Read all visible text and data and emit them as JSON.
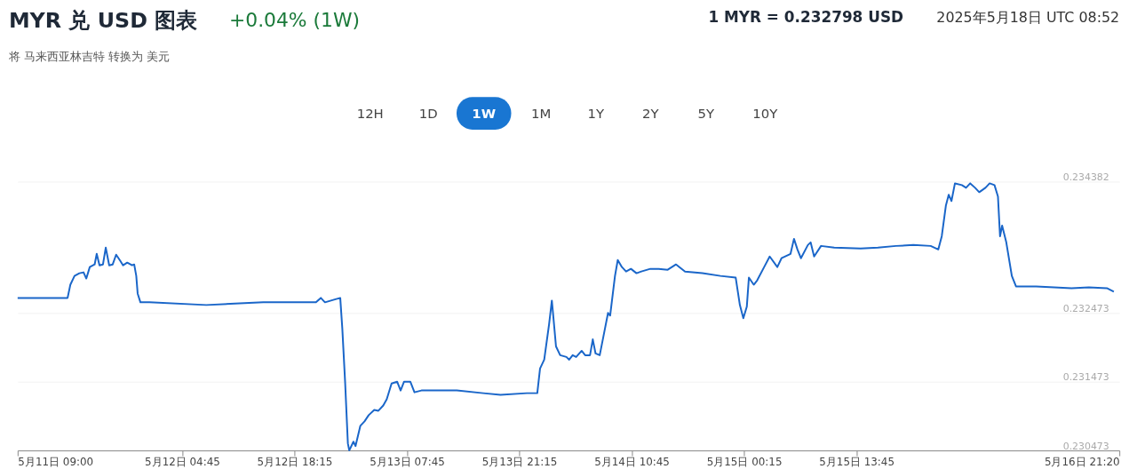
{
  "chart_data": {
    "type": "line",
    "title": "MYR 兑 USD 图表",
    "subtitle": "将 马来西亚林吉特 转换为 美元",
    "annotations": [
      "+0.04% (1W)",
      "1 MYR = 0.232798 USD",
      "2025年5月18日 UTC 08:52",
      "12H",
      "1D",
      "1W",
      "1M",
      "1Y",
      "2Y",
      "5Y",
      "10Y"
    ],
    "x": [
      "2025-05-11T09:00",
      "2025-05-11T15:00",
      "2025-05-11T15:20",
      "2025-05-11T15:50",
      "2025-05-11T16:25",
      "2025-05-11T16:55",
      "2025-05-11T17:15",
      "2025-05-11T17:40",
      "2025-05-11T18:15",
      "2025-05-11T18:30",
      "2025-05-11T18:50",
      "2025-05-11T19:15",
      "2025-05-11T19:35",
      "2025-05-11T20:00",
      "2025-05-11T20:25",
      "2025-05-11T20:50",
      "2025-05-11T21:20",
      "2025-05-11T21:40",
      "2025-05-11T22:10",
      "2025-05-11T22:45",
      "2025-05-11T23:00",
      "2025-05-11T23:15",
      "2025-05-11T23:25",
      "2025-05-11T23:45",
      "2025-05-12T00:50",
      "2025-05-12T07:40",
      "2025-05-12T14:30",
      "2025-05-12T20:50",
      "2025-05-12T21:25",
      "2025-05-12T21:55",
      "2025-05-12T23:00",
      "2025-05-12T23:45",
      "2025-05-13T00:00",
      "2025-05-13T00:20",
      "2025-05-13T00:40",
      "2025-05-13T00:50",
      "2025-05-13T01:20",
      "2025-05-13T01:35",
      "2025-05-13T02:10",
      "2025-05-13T02:40",
      "2025-05-13T03:10",
      "2025-05-13T03:50",
      "2025-05-13T04:20",
      "2025-05-13T04:55",
      "2025-05-13T05:20",
      "2025-05-13T05:55",
      "2025-05-13T06:35",
      "2025-05-13T07:00",
      "2025-05-13T07:25",
      "2025-05-13T08:10",
      "2025-05-13T08:40",
      "2025-05-13T09:30",
      "2025-05-13T11:40",
      "2025-05-13T13:45",
      "2025-05-13T16:55",
      "2025-05-13T19:00",
      "2025-05-13T22:10",
      "2025-05-13T23:25",
      "2025-05-13T23:45",
      "2025-05-14T00:15",
      "2025-05-14T00:50",
      "2025-05-14T01:10",
      "2025-05-14T01:20",
      "2025-05-14T01:40",
      "2025-05-14T02:10",
      "2025-05-14T02:55",
      "2025-05-14T03:15",
      "2025-05-14T03:40",
      "2025-05-14T04:05",
      "2025-05-14T04:45",
      "2025-05-14T05:10",
      "2025-05-14T05:45",
      "2025-05-14T06:05",
      "2025-05-14T06:25",
      "2025-05-14T06:55",
      "2025-05-14T07:30",
      "2025-05-14T07:55",
      "2025-05-14T08:10",
      "2025-05-14T08:45",
      "2025-05-14T09:05",
      "2025-05-14T09:35",
      "2025-05-14T10:05",
      "2025-05-14T10:40",
      "2025-05-14T11:20",
      "2025-05-14T11:55",
      "2025-05-14T13:00",
      "2025-05-14T14:00",
      "2025-05-14T15:05",
      "2025-05-14T16:05",
      "2025-05-14T17:10",
      "2025-05-14T19:15",
      "2025-05-14T21:25",
      "2025-05-14T23:15",
      "2025-05-14T23:45",
      "2025-05-15T00:10",
      "2025-05-15T00:35",
      "2025-05-15T00:50",
      "2025-05-15T01:25",
      "2025-05-15T01:50",
      "2025-05-15T02:40",
      "2025-05-15T03:20",
      "2025-05-15T04:15",
      "2025-05-15T04:45",
      "2025-05-15T05:50",
      "2025-05-15T06:15",
      "2025-05-15T06:40",
      "2025-05-15T07:05",
      "2025-05-15T07:55",
      "2025-05-15T08:15",
      "2025-05-15T08:40",
      "2025-05-15T09:30",
      "2025-05-15T11:05",
      "2025-05-15T14:15",
      "2025-05-15T16:20",
      "2025-05-15T18:30",
      "2025-05-15T20:35",
      "2025-05-15T22:40",
      "2025-05-15T23:35",
      "2025-05-16T00:00",
      "2025-05-16T00:30",
      "2025-05-16T00:50",
      "2025-05-16T01:10",
      "2025-05-16T01:35",
      "2025-05-16T02:25",
      "2025-05-16T02:55",
      "2025-05-16T03:25",
      "2025-05-16T04:00",
      "2025-05-16T04:30",
      "2025-05-16T05:15",
      "2025-05-16T05:45",
      "2025-05-16T06:20",
      "2025-05-16T06:45",
      "2025-05-16T07:00",
      "2025-05-16T07:15",
      "2025-05-16T07:45",
      "2025-05-16T08:25",
      "2025-05-16T08:55",
      "2025-05-16T09:45",
      "2025-05-16T11:20",
      "2025-05-16T13:30",
      "2025-05-16T15:35",
      "2025-05-16T17:40",
      "2025-05-16T19:50",
      "2025-05-16T20:40"
    ],
    "series": [
      {
        "color": "#1a66c9",
        "values": [
          0.232691,
          0.232691,
          0.232883,
          0.233011,
          0.23305,
          0.233063,
          0.232973,
          0.23314,
          0.233178,
          0.233332,
          0.233165,
          0.233178,
          0.233422,
          0.233165,
          0.233178,
          0.233319,
          0.233229,
          0.233165,
          0.233204,
          0.233165,
          0.233178,
          0.233011,
          0.232755,
          0.232627,
          0.232627,
          0.232588,
          0.232627,
          0.232627,
          0.232691,
          0.232627,
          0.232665,
          0.232691,
          0.232242,
          0.231473,
          0.230576,
          0.230473,
          0.230601,
          0.230537,
          0.230832,
          0.230896,
          0.230986,
          0.231063,
          0.23105,
          0.231127,
          0.231217,
          0.231447,
          0.231473,
          0.231345,
          0.231473,
          0.231473,
          0.231319,
          0.231345,
          0.231345,
          0.231345,
          0.231306,
          0.231281,
          0.231306,
          0.231306,
          0.231665,
          0.231793,
          0.232306,
          0.232652,
          0.232434,
          0.231986,
          0.231858,
          0.231832,
          0.231793,
          0.231858,
          0.231832,
          0.231922,
          0.231858,
          0.231858,
          0.232088,
          0.231883,
          0.231858,
          0.232217,
          0.232473,
          0.232434,
          0.233011,
          0.233242,
          0.23314,
          0.233075,
          0.233114,
          0.23305,
          0.233075,
          0.233114,
          0.233114,
          0.233101,
          0.233178,
          0.233075,
          0.23305,
          0.233011,
          0.232986,
          0.232588,
          0.232396,
          0.232563,
          0.232986,
          0.232883,
          0.232947,
          0.23314,
          0.233293,
          0.23314,
          0.233268,
          0.233332,
          0.23355,
          0.233396,
          0.233268,
          0.23346,
          0.233499,
          0.233293,
          0.233447,
          0.233422,
          0.233409,
          0.233422,
          0.233447,
          0.23346,
          0.233447,
          0.233396,
          0.233588,
          0.234037,
          0.234191,
          0.234101,
          0.234357,
          0.234332,
          0.234293,
          0.234357,
          0.234293,
          0.234229,
          0.234293,
          0.234357,
          0.234332,
          0.234165,
          0.233588,
          0.233742,
          0.233499,
          0.233011,
          0.232858,
          0.232858,
          0.232858,
          0.232845,
          0.232832,
          0.232845,
          0.232832,
          0.232781
        ]
      }
    ],
    "xlim": [
      "2025-05-11T09:00",
      "2025-05-16T21:20"
    ],
    "xticks": [
      {
        "value": "2025-05-11T09:00",
        "label": "5月11日 09:00"
      },
      {
        "value": "2025-05-12T04:45",
        "label": "5月12日 04:45"
      },
      {
        "value": "2025-05-12T18:15",
        "label": "5月12日 18:15"
      },
      {
        "value": "2025-05-13T07:45",
        "label": "5月13日 07:45"
      },
      {
        "value": "2025-05-13T21:15",
        "label": "5月13日 21:15"
      },
      {
        "value": "2025-05-14T10:45",
        "label": "5月14日 10:45"
      },
      {
        "value": "2025-05-15T00:15",
        "label": "5月15日 00:15"
      },
      {
        "value": "2025-05-15T13:45",
        "label": "5月15日 13:45"
      },
      {
        "value": "2025-05-16T21:20",
        "label": "5月16日 21:20"
      }
    ],
    "ylim": [
      0.230473,
      0.234382
    ],
    "yticks": [
      0.230473,
      0.231473,
      0.232473,
      0.234382
    ],
    "grid": "y",
    "line_style": "solid",
    "marker": "none"
  }
}
